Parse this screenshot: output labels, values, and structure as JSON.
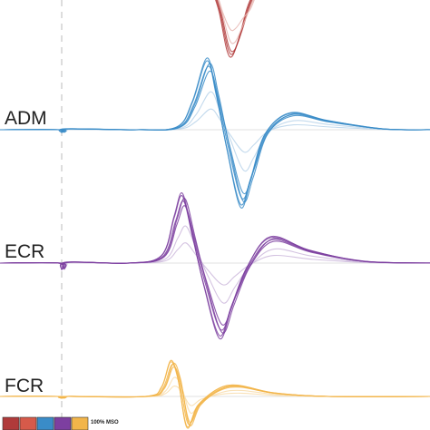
{
  "traces": [
    {
      "label": "ADM"
    },
    {
      "label": "ECR"
    },
    {
      "label": "FCR"
    }
  ],
  "legend": {
    "entries": [
      "100% MSO"
    ]
  }
}
